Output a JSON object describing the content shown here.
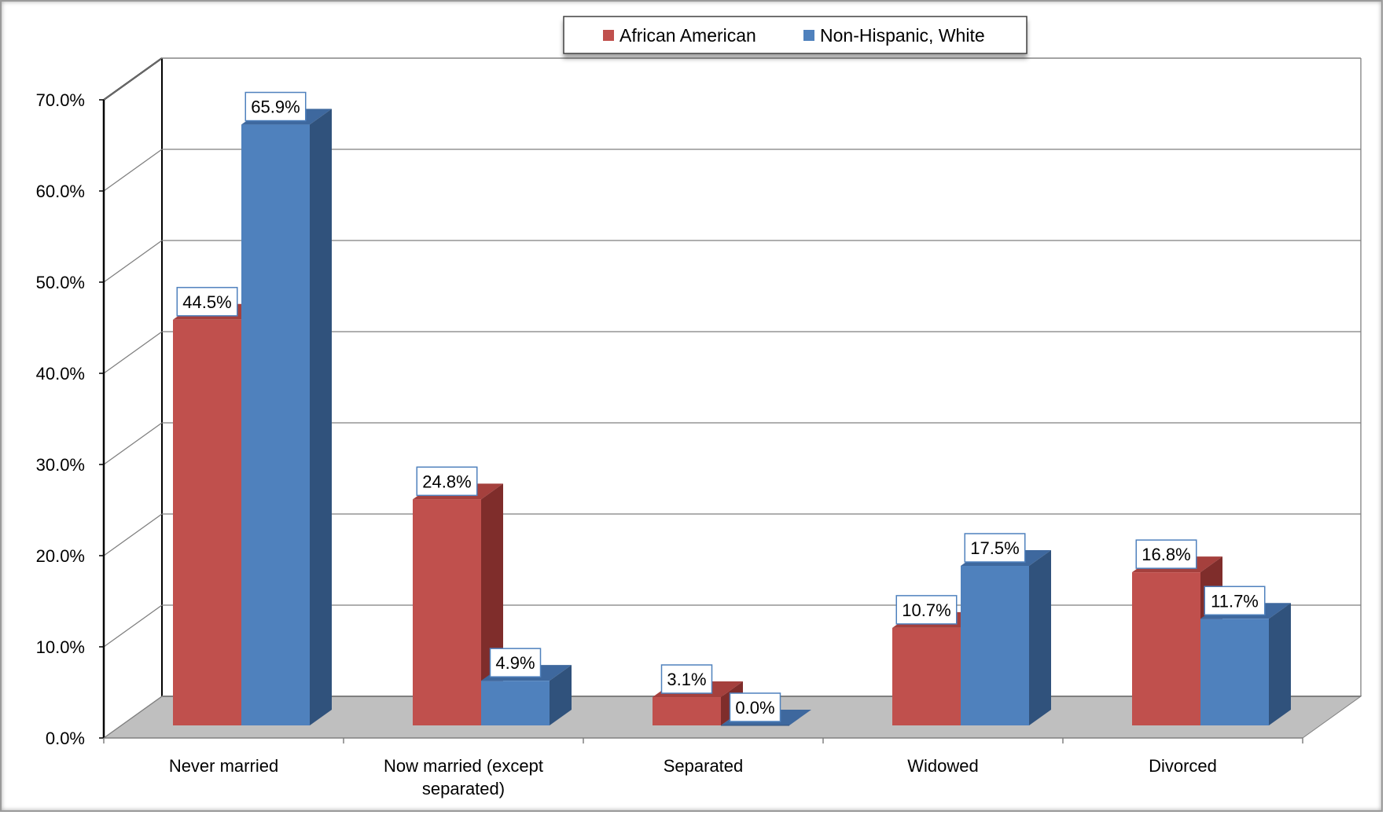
{
  "chart_data": {
    "type": "bar",
    "style": "3d-clustered-column",
    "categories": [
      "Never married",
      "Now married (except separated)",
      "Separated",
      "Widowed",
      "Divorced"
    ],
    "category_lines": [
      [
        "Never married"
      ],
      [
        "Now married (except",
        "separated)"
      ],
      [
        "Separated"
      ],
      [
        "Widowed"
      ],
      [
        "Divorced"
      ]
    ],
    "series": [
      {
        "name": "African American",
        "values": [
          44.5,
          24.8,
          3.1,
          10.7,
          16.8
        ],
        "labels": [
          "44.5%",
          "24.8%",
          "3.1%",
          "10.7%",
          "16.8%"
        ],
        "color": "#c0504d",
        "side_color": "#7f2d2b",
        "top_color": "#a5403d"
      },
      {
        "name": "Non-Hispanic, White",
        "values": [
          65.9,
          4.9,
          0.0,
          17.5,
          11.7
        ],
        "labels": [
          "65.9%",
          "4.9%",
          "0.0%",
          "17.5%",
          "11.7%"
        ],
        "color": "#4f81bd",
        "side_color": "#30527c",
        "top_color": "#3e689e"
      }
    ],
    "yticks": [
      "0.0%",
      "10.0%",
      "20.0%",
      "30.0%",
      "40.0%",
      "50.0%",
      "60.0%",
      "70.0%"
    ],
    "ylim": [
      0,
      70
    ],
    "grid": true,
    "legend_position": "top-center",
    "floor_color": "#bfbfbf",
    "gridline_color": "#7f7f7f",
    "title": "",
    "xlabel": "",
    "ylabel": ""
  }
}
